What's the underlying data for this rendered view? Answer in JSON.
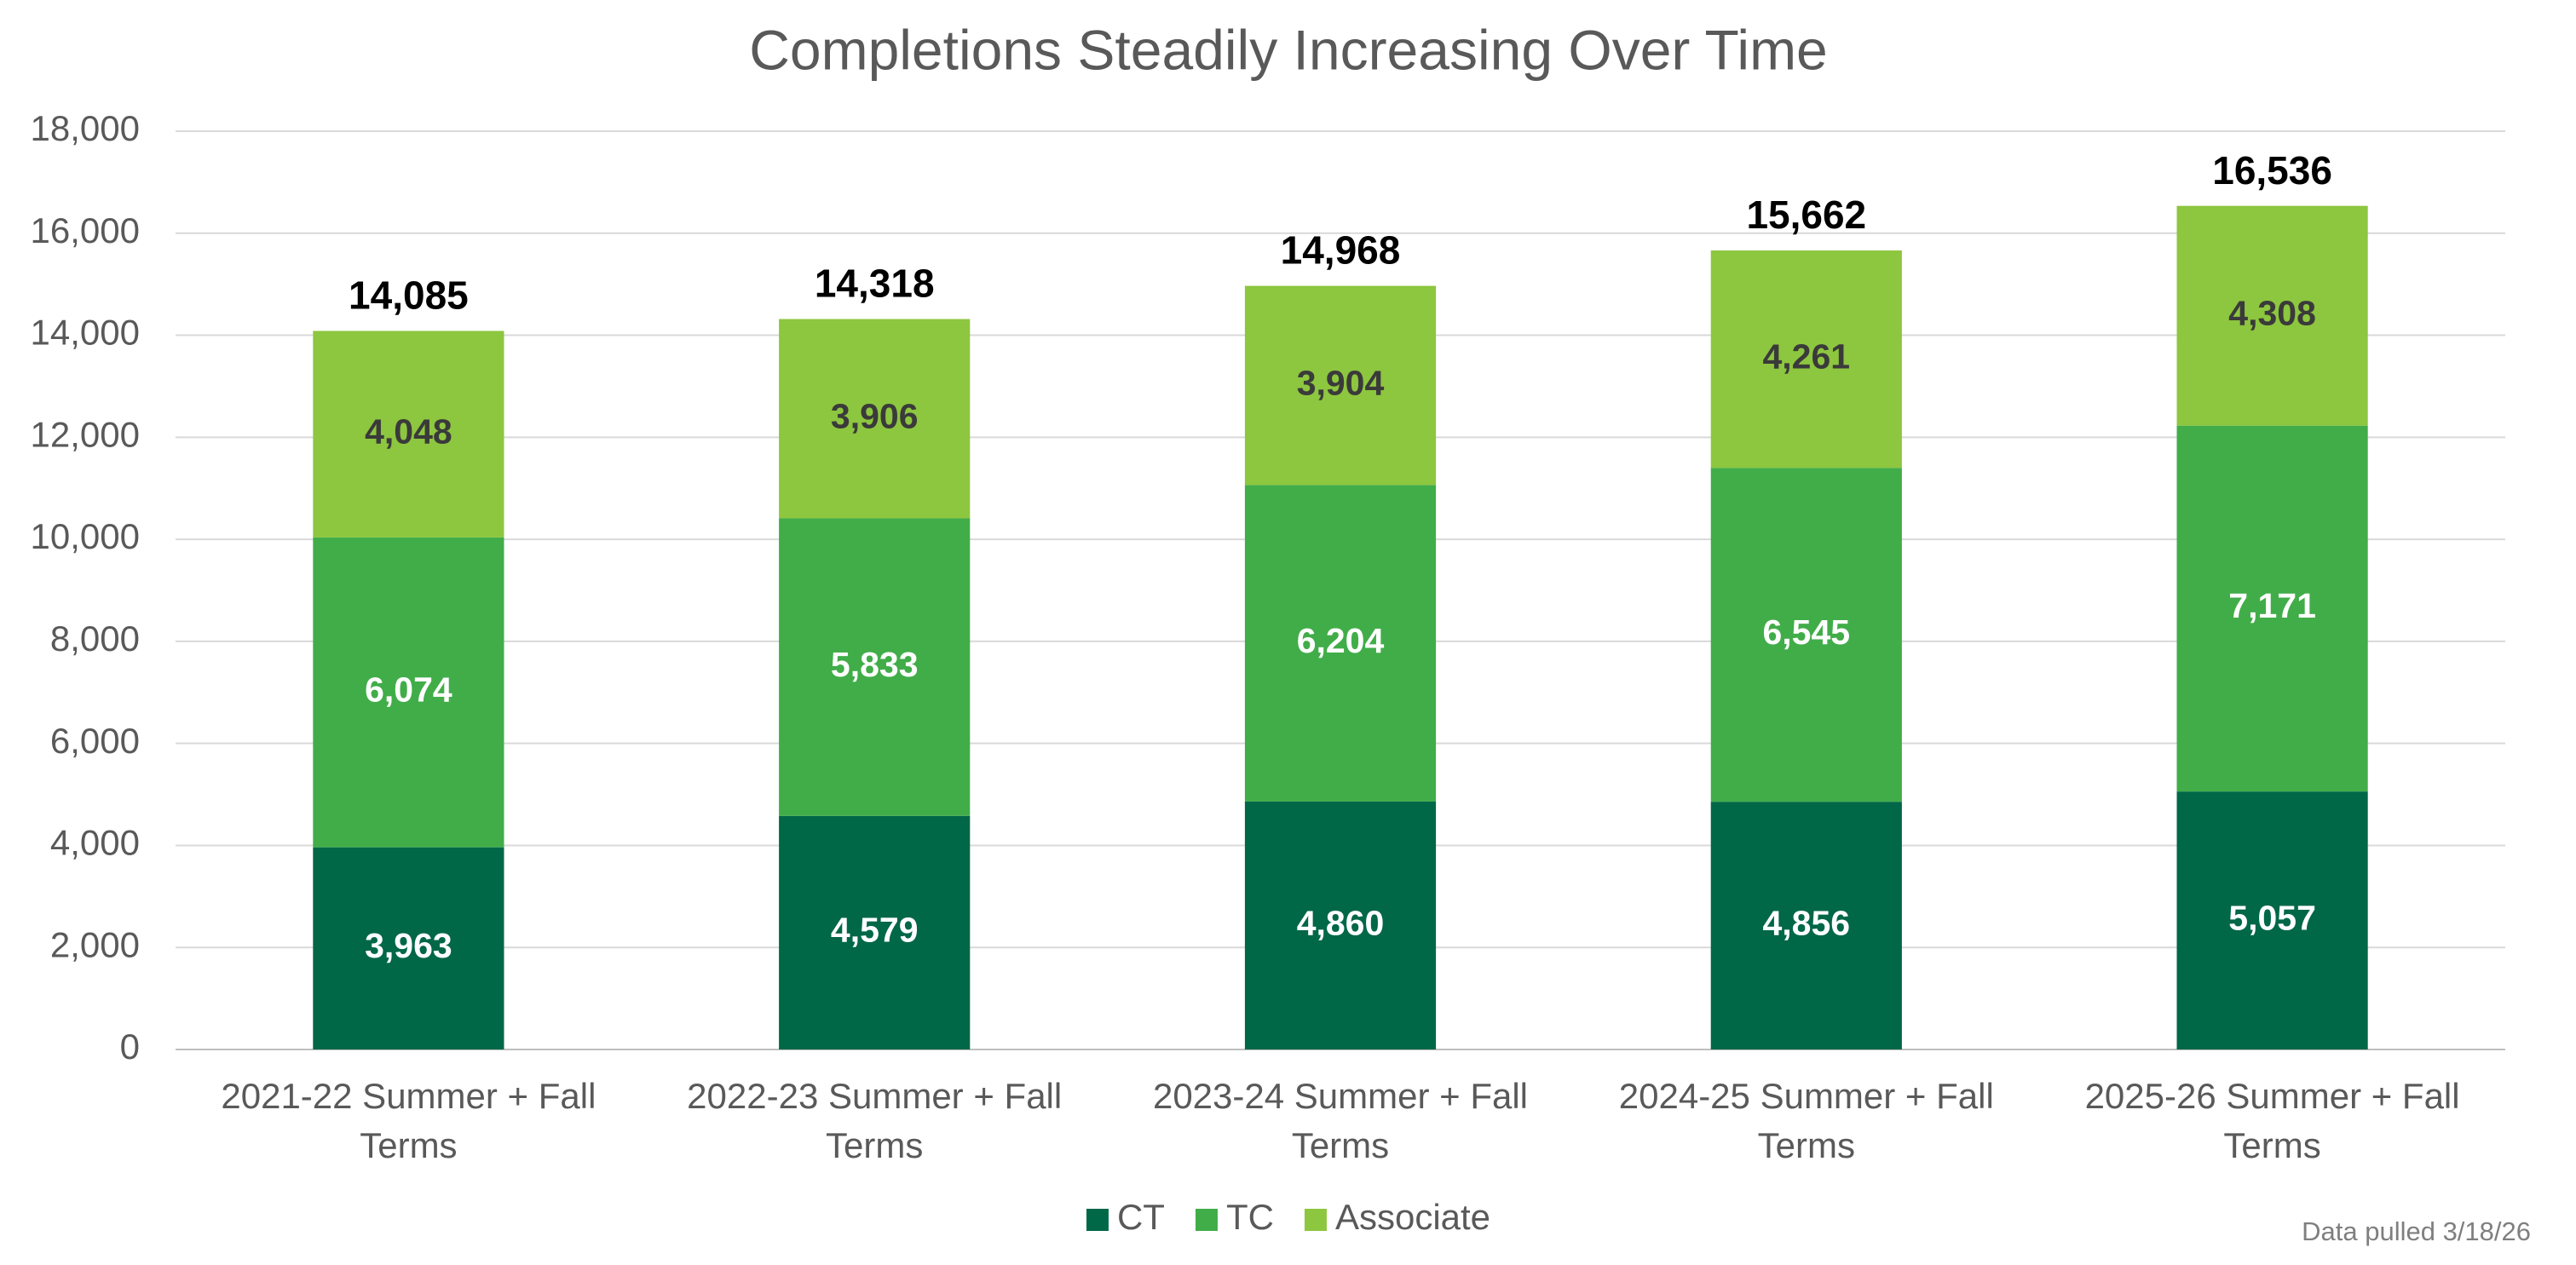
{
  "chart_data": {
    "type": "stacked_bar",
    "title": "Completions Steadily Increasing Over Time",
    "categories": [
      "2021-22 Summer + Fall Terms",
      "2022-23 Summer + Fall Terms",
      "2023-24 Summer + Fall Terms",
      "2024-25 Summer + Fall Terms",
      "2025-26 Summer + Fall Terms"
    ],
    "series": [
      {
        "name": "CT",
        "color": "#006747",
        "label_color": "#ffffff",
        "values": [
          3963,
          4579,
          4860,
          4856,
          5057
        ],
        "value_labels": [
          "3,963",
          "4,579",
          "4,860",
          "4,856",
          "5,057"
        ]
      },
      {
        "name": "TC",
        "color": "#41ad49",
        "label_color": "#ffffff",
        "values": [
          6074,
          5833,
          6204,
          6545,
          7171
        ],
        "value_labels": [
          "6,074",
          "5,833",
          "6,204",
          "6,545",
          "7,171"
        ]
      },
      {
        "name": "Associate",
        "color": "#8dc63f",
        "label_color": "#3a3a3a",
        "values": [
          4048,
          3906,
          3904,
          4261,
          4308
        ],
        "value_labels": [
          "4,048",
          "3,906",
          "3,904",
          "4,261",
          "4,308"
        ]
      }
    ],
    "totals": [
      14085,
      14318,
      14968,
      15662,
      16536
    ],
    "total_labels": [
      "14,085",
      "14,318",
      "14,968",
      "15,662",
      "16,536"
    ],
    "ylim": [
      0,
      18000
    ],
    "yticks": [
      0,
      {
        "value": 2000,
        "label": "2,000"
      },
      {
        "value": 4000,
        "label": "4,000"
      },
      {
        "value": 6000,
        "label": "6,000"
      },
      {
        "value": 8000,
        "label": "8,000"
      },
      {
        "value": 10000,
        "label": "10,000"
      },
      {
        "value": 12000,
        "label": "12,000"
      },
      {
        "value": 14000,
        "label": "14,000"
      },
      {
        "value": 16000,
        "label": "16,000"
      },
      {
        "value": 18000,
        "label": "18,000"
      }
    ],
    "grid": true,
    "legend": "bottom",
    "annotation": "Data pulled 3/18/26"
  }
}
